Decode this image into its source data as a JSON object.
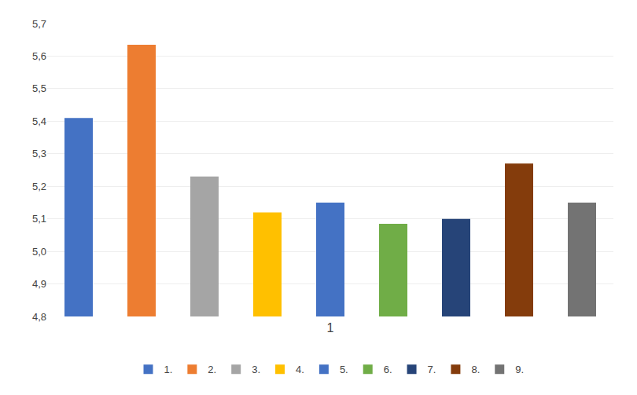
{
  "chart_data": {
    "type": "bar",
    "categories": [
      "1.",
      "2.",
      "3.",
      "4.",
      "5.",
      "6.",
      "7.",
      "8.",
      "9."
    ],
    "values": [
      5.41,
      5.635,
      5.23,
      5.12,
      5.15,
      5.085,
      5.1,
      5.27,
      5.15
    ],
    "colors": [
      "#4472C4",
      "#ED7D31",
      "#A5A5A5",
      "#FFC000",
      "#4472C4",
      "#70AD47",
      "#264478",
      "#843C0C",
      "#737373"
    ],
    "xlabel": "1",
    "ylim": [
      4.8,
      5.7
    ],
    "yticks": [
      {
        "value": 4.8,
        "label": "4,8"
      },
      {
        "value": 4.9,
        "label": "4,9"
      },
      {
        "value": 5.0,
        "label": "5,0"
      },
      {
        "value": 5.1,
        "label": "5,1"
      },
      {
        "value": 5.2,
        "label": "5,2"
      },
      {
        "value": 5.3,
        "label": "5,3"
      },
      {
        "value": 5.4,
        "label": "5,4"
      },
      {
        "value": 5.5,
        "label": "5,5"
      },
      {
        "value": 5.6,
        "label": "5,6"
      },
      {
        "value": 5.7,
        "label": "5,7"
      }
    ],
    "grid": true,
    "legend": "bottom",
    "tick_labels": "y"
  }
}
